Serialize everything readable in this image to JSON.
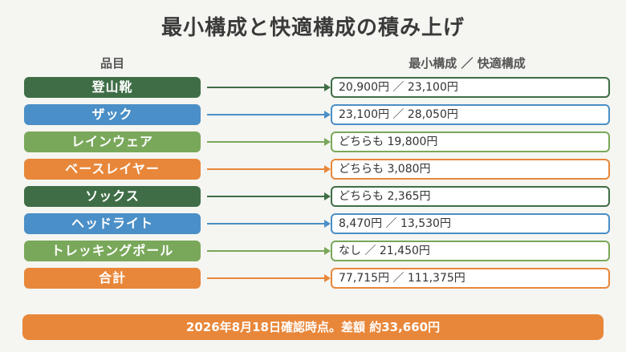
{
  "title": "最小構成と快適構成の積み上げ",
  "headers": {
    "left": "品目",
    "right": "最小構成 ／ 快適構成"
  },
  "rows": [
    {
      "label": "登山靴",
      "value": "20,900円 ／ 23,100円",
      "color": "#3f6e46"
    },
    {
      "label": "ザック",
      "value": "23,100円 ／ 28,050円",
      "color": "#4a8fc7"
    },
    {
      "label": "レインウェア",
      "value": "どちらも 19,800円",
      "color": "#79a85a"
    },
    {
      "label": "ベースレイヤー",
      "value": "どちらも 3,080円",
      "color": "#e8873a"
    },
    {
      "label": "ソックス",
      "value": "どちらも 2,365円",
      "color": "#3f6e46"
    },
    {
      "label": "ヘッドライト",
      "value": "8,470円 ／ 13,530円",
      "color": "#4a8fc7"
    },
    {
      "label": "トレッキングポール",
      "value": "なし ／ 21,450円",
      "color": "#79a85a"
    },
    {
      "label": "合計",
      "value": "77,715円 ／ 111,375円",
      "color": "#e8873a"
    }
  ],
  "footer": "2026年8月18日確認時点。差額 約33,660円"
}
